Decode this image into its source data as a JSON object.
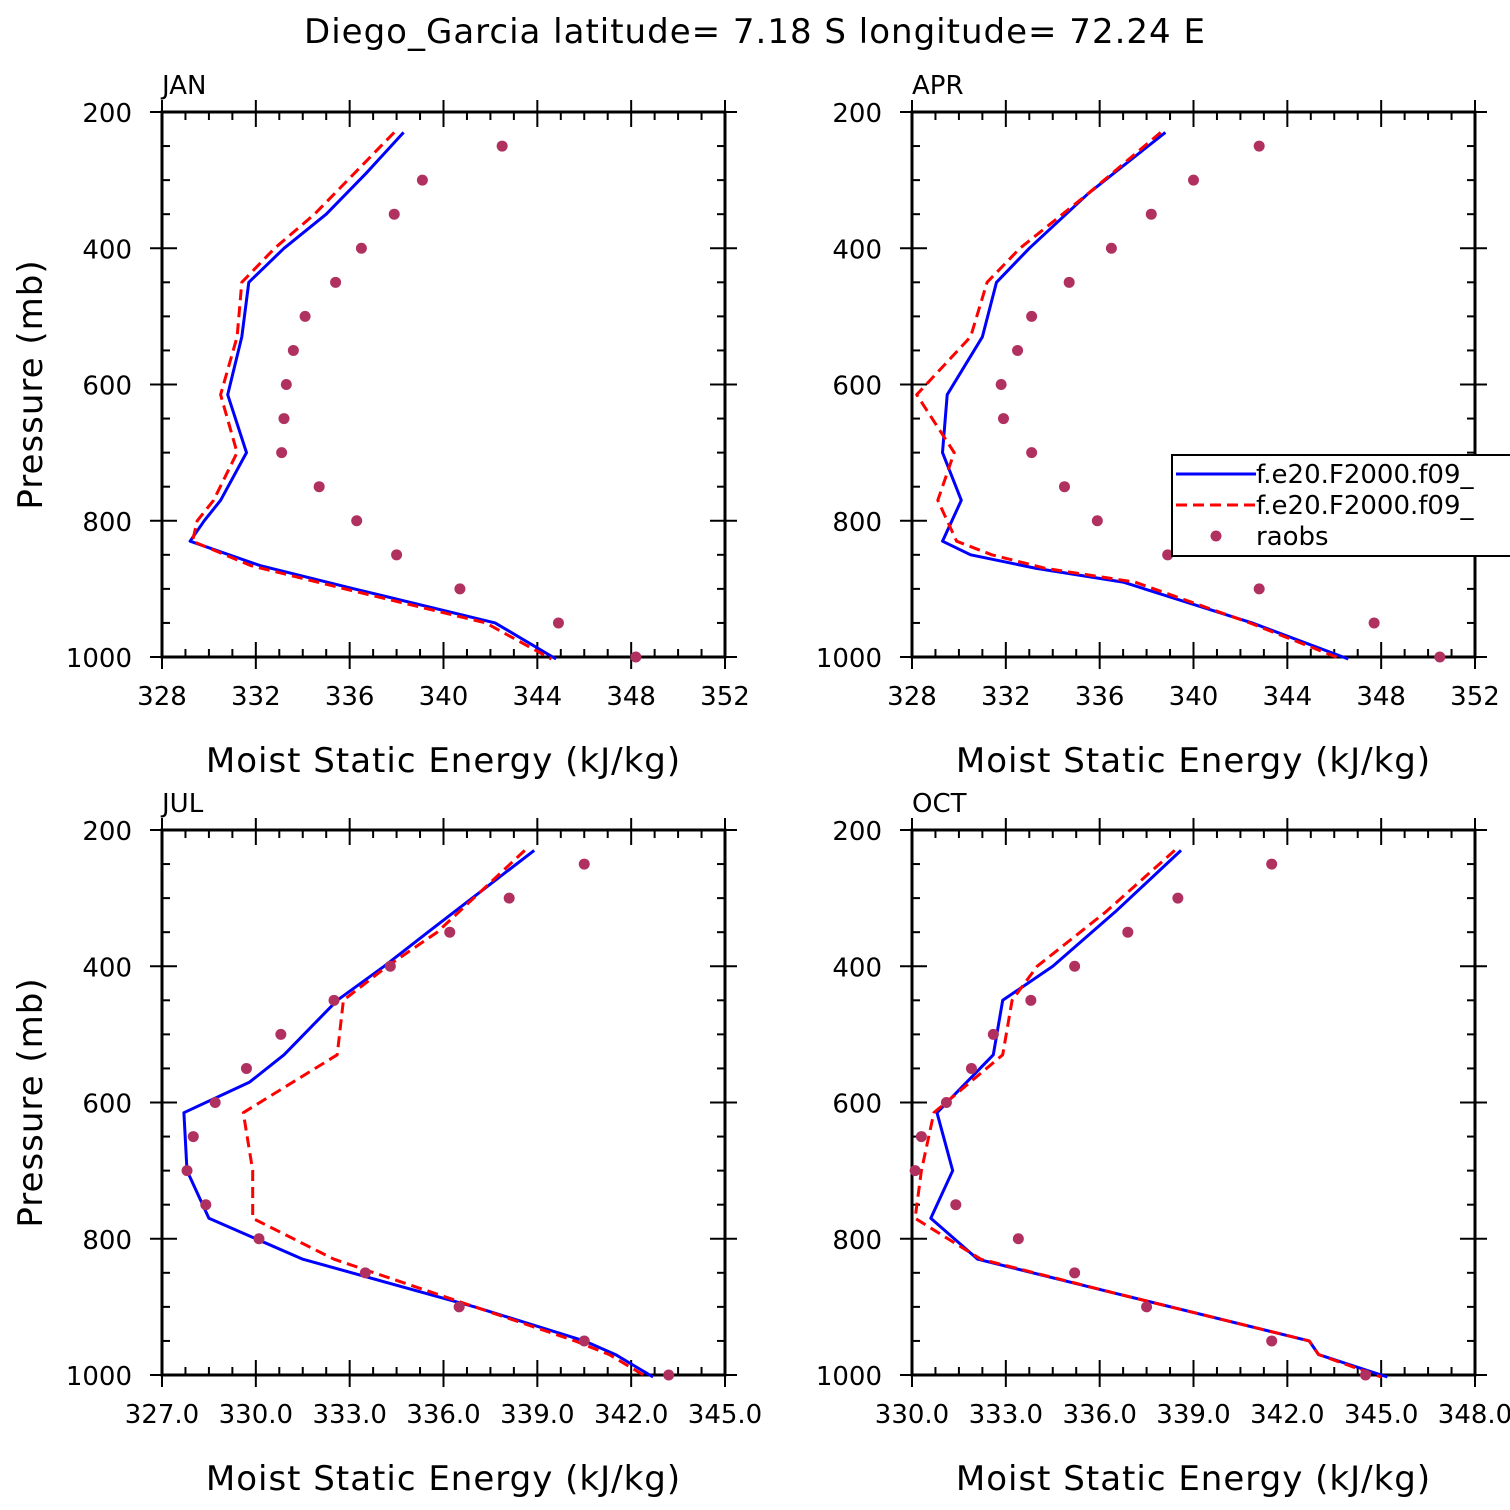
{
  "title": "Diego_Garcia  latitude= 7.18 S longitude= 72.24 E",
  "colors": {
    "model1": "#0000ff",
    "model2": "#ff0000",
    "raobs": "#b03060"
  },
  "legend": {
    "placement": "right, APR panel (clipped at image edge)",
    "entries": [
      {
        "label": "f.e20.F2000.f09_",
        "style": "solid",
        "color": "#0000ff"
      },
      {
        "label": "f.e20.F2000.f09_",
        "style": "dashed",
        "color": "#ff0000"
      },
      {
        "label": "raobs",
        "style": "dots",
        "color": "#b03060"
      }
    ]
  },
  "chart_data": [
    {
      "type": "line",
      "panel": "JAN",
      "xlabel": "Moist Static Energy (kJ/kg)",
      "ylabel": "Pressure (mb)",
      "xlim": [
        328,
        352
      ],
      "xticks": [
        328,
        332,
        336,
        340,
        344,
        348,
        352
      ],
      "xtick_labels": [
        "328",
        "332",
        "336",
        "340",
        "344",
        "348",
        "352"
      ],
      "ylim": [
        200,
        1000
      ],
      "yticks": [
        200,
        400,
        600,
        800,
        1000
      ],
      "series": [
        {
          "key": "model1",
          "style": "solid",
          "x": [
            338.3,
            336.7,
            335.0,
            333.2,
            331.7,
            331.4,
            330.8,
            331.6,
            330.5,
            329.8,
            329.2,
            332.2,
            336.2,
            342.2,
            344.8
          ],
          "y": [
            230,
            290,
            350,
            400,
            450,
            530,
            615,
            700,
            770,
            800,
            830,
            866,
            900,
            950,
            1003
          ]
        },
        {
          "key": "model2",
          "style": "dashed",
          "x": [
            337.9,
            336.2,
            334.5,
            332.8,
            331.4,
            331.2,
            330.5,
            331.2,
            330.2,
            329.5,
            329.3,
            331.8,
            335.8,
            341.8,
            344.6
          ],
          "y": [
            230,
            290,
            350,
            400,
            450,
            530,
            615,
            700,
            770,
            800,
            830,
            866,
            900,
            950,
            1003
          ]
        },
        {
          "key": "raobs",
          "style": "dots",
          "x": [
            342.5,
            339.1,
            337.9,
            336.5,
            335.4,
            334.1,
            333.6,
            333.3,
            333.2,
            333.1,
            334.7,
            336.3,
            338.0,
            340.7,
            344.9,
            348.2
          ],
          "y": [
            250,
            300,
            350,
            400,
            450,
            500,
            550,
            600,
            650,
            700,
            750,
            800,
            850,
            900,
            950,
            1000
          ]
        }
      ]
    },
    {
      "type": "line",
      "panel": "APR",
      "xlabel": "Moist Static Energy (kJ/kg)",
      "ylabel": "",
      "xlim": [
        328,
        352
      ],
      "xticks": [
        328,
        332,
        336,
        340,
        344,
        348,
        352
      ],
      "xtick_labels": [
        "328",
        "332",
        "336",
        "340",
        "344",
        "348",
        "352"
      ],
      "ylim": [
        200,
        1000
      ],
      "yticks": [
        200,
        400,
        600,
        800,
        1000
      ],
      "series": [
        {
          "key": "model1",
          "style": "solid",
          "x": [
            338.8,
            335.5,
            333.0,
            331.6,
            331.0,
            329.5,
            329.3,
            330.1,
            329.3,
            330.5,
            333.3,
            337.0,
            342.5,
            346.6
          ],
          "y": [
            230,
            320,
            400,
            450,
            530,
            615,
            700,
            770,
            830,
            850,
            870,
            890,
            950,
            1003
          ]
        },
        {
          "key": "model2",
          "style": "dashed",
          "x": [
            338.6,
            335.5,
            332.6,
            331.2,
            330.5,
            328.2,
            329.8,
            329.1,
            329.9,
            331.4,
            333.7,
            337.5,
            342.4,
            346.3
          ],
          "y": [
            230,
            320,
            400,
            450,
            530,
            615,
            700,
            770,
            830,
            850,
            870,
            890,
            950,
            1003
          ]
        },
        {
          "key": "raobs",
          "style": "dots",
          "x": [
            342.8,
            340.0,
            338.2,
            336.5,
            334.7,
            333.1,
            332.5,
            331.8,
            331.9,
            333.1,
            334.5,
            335.9,
            338.9,
            342.8,
            347.7,
            350.5
          ],
          "y": [
            250,
            300,
            350,
            400,
            450,
            500,
            550,
            600,
            650,
            700,
            750,
            800,
            850,
            900,
            950,
            1000
          ]
        }
      ]
    },
    {
      "type": "line",
      "panel": "JUL",
      "xlabel": "Moist Static Energy (kJ/kg)",
      "ylabel": "Pressure (mb)",
      "xlim": [
        327,
        345
      ],
      "xticks": [
        327,
        330,
        333,
        336,
        339,
        342,
        345
      ],
      "xtick_labels": [
        "327.0",
        "330.0",
        "333.0",
        "336.0",
        "339.0",
        "342.0",
        "345.0"
      ],
      "ylim": [
        200,
        1000
      ],
      "yticks": [
        200,
        400,
        600,
        800,
        1000
      ],
      "series": [
        {
          "key": "model1",
          "style": "solid",
          "x": [
            338.9,
            335.5,
            334.1,
            332.6,
            330.9,
            329.8,
            327.7,
            327.8,
            328.5,
            331.5,
            337.0,
            340.5,
            341.5,
            342.7
          ],
          "y": [
            230,
            350,
            400,
            450,
            530,
            570,
            615,
            700,
            770,
            830,
            900,
            950,
            970,
            1003
          ]
        },
        {
          "key": "model2",
          "style": "dashed",
          "x": [
            338.6,
            335.8,
            334.2,
            332.8,
            332.6,
            329.6,
            329.9,
            329.9,
            332.5,
            337.0,
            340.2,
            341.3,
            342.5
          ],
          "y": [
            230,
            350,
            400,
            450,
            530,
            615,
            700,
            770,
            830,
            900,
            950,
            970,
            1003
          ]
        },
        {
          "key": "raobs",
          "style": "dots",
          "x": [
            340.5,
            338.1,
            336.2,
            334.3,
            332.5,
            330.8,
            329.7,
            328.7,
            328.0,
            327.8,
            328.4,
            330.1,
            333.5,
            336.5,
            340.5,
            343.2
          ],
          "y": [
            250,
            300,
            350,
            400,
            450,
            500,
            550,
            600,
            650,
            700,
            750,
            800,
            850,
            900,
            950,
            1000
          ]
        }
      ]
    },
    {
      "type": "line",
      "panel": "OCT",
      "xlabel": "Moist Static Energy (kJ/kg)",
      "ylabel": "",
      "xlim": [
        330,
        348
      ],
      "xticks": [
        330,
        333,
        336,
        339,
        342,
        345,
        348
      ],
      "xtick_labels": [
        "330.0",
        "333.0",
        "336.0",
        "339.0",
        "342.0",
        "345.0",
        "348.0"
      ],
      "ylim": [
        200,
        1000
      ],
      "yticks": [
        200,
        400,
        600,
        800,
        1000
      ],
      "series": [
        {
          "key": "model1",
          "style": "solid",
          "x": [
            338.6,
            336.5,
            334.5,
            332.9,
            332.6,
            330.8,
            331.3,
            330.6,
            332.1,
            336.5,
            342.7,
            343.0,
            345.2
          ],
          "y": [
            230,
            320,
            400,
            450,
            530,
            615,
            700,
            770,
            830,
            880,
            950,
            970,
            1003
          ]
        },
        {
          "key": "model2",
          "style": "dashed",
          "x": [
            338.4,
            336.2,
            334.0,
            333.2,
            332.9,
            330.7,
            330.3,
            330.1,
            332.2,
            336.5,
            342.7,
            343.0,
            345.0
          ],
          "y": [
            230,
            320,
            400,
            450,
            530,
            615,
            700,
            770,
            830,
            880,
            950,
            970,
            1003
          ]
        },
        {
          "key": "raobs",
          "style": "dots",
          "x": [
            341.5,
            338.5,
            336.9,
            335.2,
            333.8,
            332.6,
            331.9,
            331.1,
            330.3,
            330.1,
            331.4,
            333.4,
            335.2,
            337.5,
            341.5,
            344.5
          ],
          "y": [
            250,
            300,
            350,
            400,
            450,
            500,
            550,
            600,
            650,
            700,
            750,
            800,
            850,
            900,
            950,
            1000
          ]
        }
      ]
    }
  ]
}
